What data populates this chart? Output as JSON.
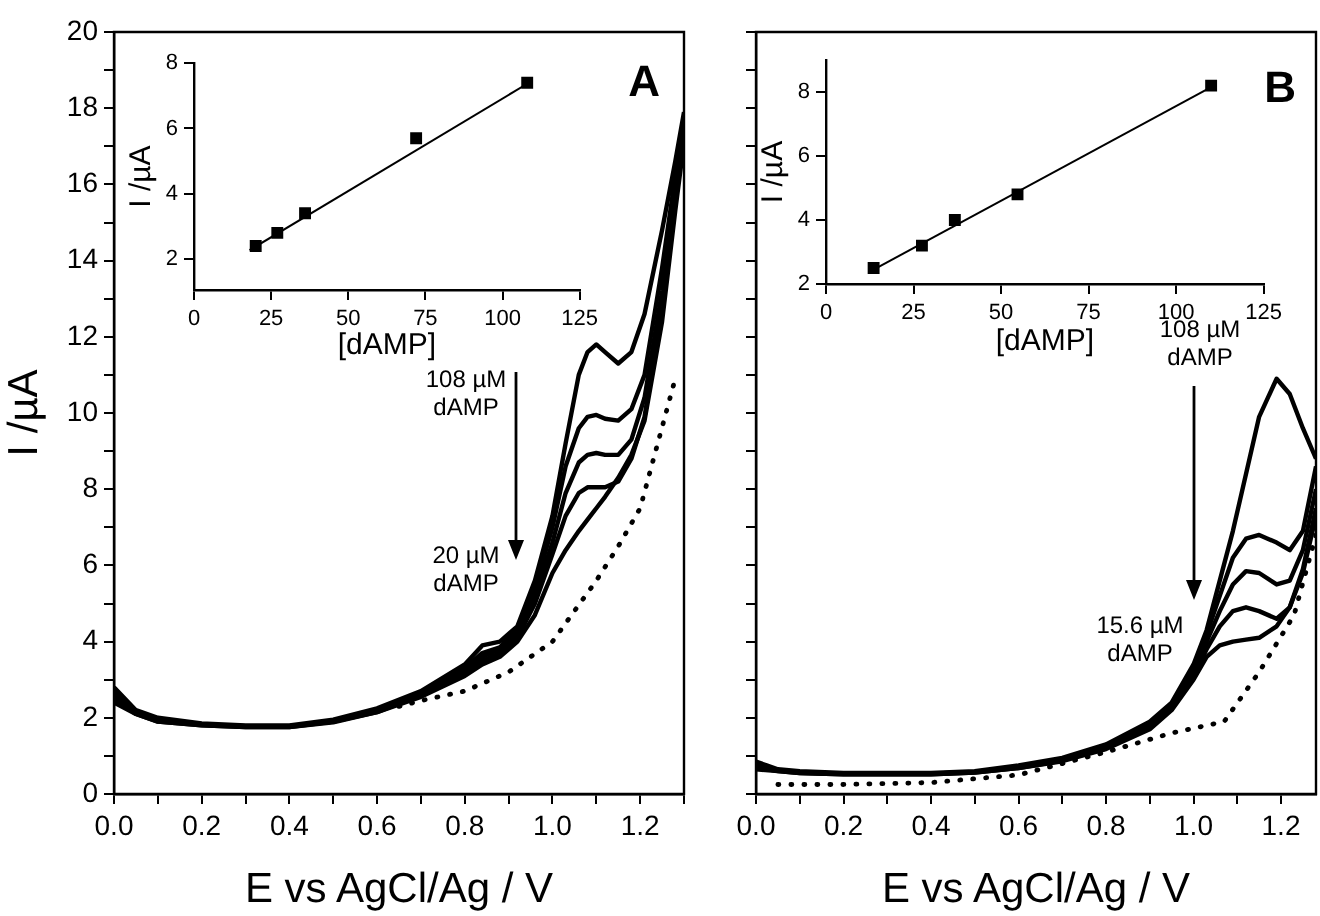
{
  "chart_data": [
    {
      "type": "line",
      "xlabel": "E vs AgCl/Ag / V",
      "ylabel": "I /µA",
      "xlim": [
        0,
        1.3
      ],
      "ylim": [
        0,
        20
      ],
      "xticks": [
        {
          "value": 0,
          "label": "0.0"
        },
        {
          "value": 0.1,
          "label": null
        },
        {
          "value": 0.2,
          "label": "0.2"
        },
        {
          "value": 0.3,
          "label": null
        },
        {
          "value": 0.4,
          "label": "0.4"
        },
        {
          "value": 0.5,
          "label": null
        },
        {
          "value": 0.6,
          "label": "0.6"
        },
        {
          "value": 0.7,
          "label": null
        },
        {
          "value": 0.8,
          "label": "0.8"
        },
        {
          "value": 0.9,
          "label": null
        },
        {
          "value": 1,
          "label": "1.0"
        },
        {
          "value": 1.1,
          "label": null
        },
        {
          "value": 1.2,
          "label": "1.2"
        },
        {
          "value": 1.3,
          "label": null
        }
      ],
      "yticks": [
        0,
        {
          "value": 1,
          "label": null
        },
        2,
        {
          "value": 3,
          "label": null
        },
        4,
        {
          "value": 5,
          "label": null
        },
        6,
        {
          "value": 7,
          "label": null
        },
        8,
        {
          "value": 9,
          "label": null
        },
        10,
        {
          "value": 11,
          "label": null
        },
        12,
        {
          "value": 13,
          "label": null
        },
        14,
        {
          "value": 15,
          "label": null
        },
        16,
        {
          "value": 17,
          "label": null
        },
        18,
        {
          "value": 19,
          "label": null
        },
        20
      ],
      "marker": "none",
      "legend": false,
      "grid": false,
      "annotations": [
        "A",
        "108 µM\ndAMP",
        "20 µM\ndAMP"
      ],
      "series": [
        {
          "color": "#000000",
          "x": [
            0,
            0.05,
            0.1,
            0.2,
            0.3,
            0.4,
            0.5,
            0.6,
            0.7,
            0.8,
            0.84,
            0.88,
            0.92,
            0.96,
            1.0,
            1.03,
            1.06,
            1.08,
            1.1,
            1.12,
            1.15,
            1.18,
            1.21,
            1.25,
            1.28,
            1.3
          ],
          "values": [
            2.8,
            2.2,
            2.0,
            1.85,
            1.8,
            1.8,
            1.95,
            2.25,
            2.7,
            3.4,
            3.9,
            4.0,
            4.4,
            5.6,
            7.3,
            9.2,
            11.0,
            11.6,
            11.8,
            11.6,
            11.3,
            11.6,
            12.6,
            14.8,
            16.6,
            17.9
          ]
        },
        {
          "color": "#000000",
          "x": [
            0,
            0.05,
            0.1,
            0.2,
            0.3,
            0.4,
            0.5,
            0.6,
            0.7,
            0.8,
            0.84,
            0.88,
            0.92,
            0.96,
            1.0,
            1.03,
            1.06,
            1.08,
            1.1,
            1.12,
            1.15,
            1.18,
            1.21,
            1.25,
            1.28,
            1.3
          ],
          "values": [
            2.7,
            2.15,
            1.95,
            1.82,
            1.78,
            1.78,
            1.92,
            2.2,
            2.65,
            3.3,
            3.7,
            3.85,
            4.3,
            5.4,
            7.0,
            8.6,
            9.6,
            9.9,
            9.95,
            9.85,
            9.8,
            10.1,
            11.0,
            13.8,
            16.2,
            17.7
          ]
        },
        {
          "color": "#000000",
          "x": [
            0,
            0.05,
            0.1,
            0.2,
            0.3,
            0.4,
            0.5,
            0.6,
            0.7,
            0.8,
            0.84,
            0.88,
            0.92,
            0.96,
            1.0,
            1.03,
            1.06,
            1.08,
            1.1,
            1.12,
            1.15,
            1.18,
            1.21,
            1.25,
            1.28,
            1.3
          ],
          "values": [
            2.6,
            2.15,
            1.95,
            1.82,
            1.78,
            1.78,
            1.9,
            2.2,
            2.6,
            3.25,
            3.6,
            3.8,
            4.2,
            5.2,
            6.6,
            7.9,
            8.7,
            8.9,
            8.95,
            8.9,
            8.9,
            9.3,
            10.4,
            13.2,
            15.9,
            17.5
          ]
        },
        {
          "color": "#000000",
          "x": [
            0,
            0.05,
            0.1,
            0.2,
            0.3,
            0.4,
            0.5,
            0.6,
            0.7,
            0.8,
            0.84,
            0.88,
            0.92,
            0.96,
            1.0,
            1.03,
            1.06,
            1.08,
            1.1,
            1.12,
            1.15,
            1.18,
            1.21,
            1.25,
            1.28,
            1.3
          ],
          "values": [
            2.5,
            2.1,
            1.9,
            1.8,
            1.76,
            1.76,
            1.9,
            2.15,
            2.6,
            3.2,
            3.5,
            3.7,
            4.1,
            5.0,
            6.3,
            7.3,
            7.9,
            8.05,
            8.05,
            8.05,
            8.2,
            8.8,
            9.9,
            12.8,
            15.6,
            17.3
          ]
        },
        {
          "color": "#000000",
          "x": [
            0,
            0.05,
            0.1,
            0.2,
            0.3,
            0.4,
            0.5,
            0.6,
            0.7,
            0.8,
            0.84,
            0.88,
            0.92,
            0.96,
            1.0,
            1.03,
            1.06,
            1.08,
            1.1,
            1.12,
            1.15,
            1.18,
            1.21,
            1.25,
            1.28,
            1.3
          ],
          "values": [
            2.4,
            2.1,
            1.9,
            1.8,
            1.76,
            1.76,
            1.88,
            2.15,
            2.55,
            3.1,
            3.4,
            3.6,
            4.0,
            4.7,
            5.8,
            6.4,
            6.9,
            7.2,
            7.5,
            7.8,
            8.3,
            8.9,
            9.8,
            12.4,
            15.3,
            17.1
          ]
        },
        {
          "color": "#000000",
          "line_style": "dotted",
          "x": [
            0.65,
            0.7,
            0.8,
            0.9,
            1.0,
            1.1,
            1.15,
            1.2,
            1.24,
            1.28
          ],
          "values": [
            2.3,
            2.45,
            2.7,
            3.2,
            4.0,
            5.6,
            6.5,
            7.5,
            9.2,
            10.9
          ]
        }
      ]
    },
    {
      "type": "scatter",
      "xlabel": "[dAMP]",
      "ylabel": "I /µA",
      "xlim": [
        0,
        125
      ],
      "ylim": [
        1.05,
        8
      ],
      "xticks": [
        0,
        25,
        50,
        75,
        100,
        125
      ],
      "yticks": [
        2,
        4,
        6,
        8
      ],
      "marker": "square",
      "legend": false,
      "grid": false,
      "series": [
        {
          "color": "#000000",
          "x": [
            20,
            27,
            36,
            72,
            108
          ],
          "values": [
            2.4,
            2.8,
            3.4,
            5.7,
            7.4
          ]
        },
        {
          "type": "line",
          "marker": "none",
          "color": "#000000",
          "x": [
            18,
            108
          ],
          "values": [
            2.27,
            7.37
          ]
        }
      ]
    },
    {
      "type": "line",
      "xlabel": "E vs AgCl/Ag / V",
      "xlim": [
        0,
        1.28
      ],
      "ylim": [
        0,
        20
      ],
      "tick_labels": "x",
      "xticks": [
        {
          "value": 0,
          "label": "0.0"
        },
        {
          "value": 0.1,
          "label": null
        },
        {
          "value": 0.2,
          "label": "0.2"
        },
        {
          "value": 0.3,
          "label": null
        },
        {
          "value": 0.4,
          "label": "0.4"
        },
        {
          "value": 0.5,
          "label": null
        },
        {
          "value": 0.6,
          "label": "0.6"
        },
        {
          "value": 0.7,
          "label": null
        },
        {
          "value": 0.8,
          "label": "0.8"
        },
        {
          "value": 0.9,
          "label": null
        },
        {
          "value": 1,
          "label": "1.0"
        },
        {
          "value": 1.1,
          "label": null
        },
        {
          "value": 1.2,
          "label": "1.2"
        }
      ],
      "yticks": [
        0,
        {
          "value": 1,
          "label": null
        },
        2,
        {
          "value": 3,
          "label": null
        },
        4,
        {
          "value": 5,
          "label": null
        },
        6,
        {
          "value": 7,
          "label": null
        },
        8,
        {
          "value": 9,
          "label": null
        },
        10,
        {
          "value": 11,
          "label": null
        },
        12,
        {
          "value": 13,
          "label": null
        },
        14,
        {
          "value": 15,
          "label": null
        },
        16,
        {
          "value": 17,
          "label": null
        },
        18,
        {
          "value": 19,
          "label": null
        },
        20
      ],
      "marker": "none",
      "legend": false,
      "grid": false,
      "annotations": [
        "B",
        "108 µM\ndAMP",
        "15.6 µM\ndAMP"
      ],
      "series": [
        {
          "color": "#000000",
          "x": [
            0,
            0.05,
            0.1,
            0.2,
            0.3,
            0.4,
            0.5,
            0.6,
            0.7,
            0.8,
            0.9,
            0.95,
            1.0,
            1.03,
            1.06,
            1.09,
            1.12,
            1.15,
            1.19,
            1.22,
            1.25,
            1.28
          ],
          "values": [
            0.85,
            0.65,
            0.6,
            0.55,
            0.55,
            0.55,
            0.6,
            0.75,
            0.95,
            1.3,
            1.9,
            2.4,
            3.4,
            4.3,
            5.6,
            6.9,
            8.4,
            9.9,
            10.9,
            10.5,
            9.6,
            8.8
          ]
        },
        {
          "color": "#000000",
          "x": [
            0,
            0.05,
            0.1,
            0.2,
            0.3,
            0.4,
            0.5,
            0.6,
            0.7,
            0.8,
            0.9,
            0.95,
            1.0,
            1.03,
            1.06,
            1.09,
            1.12,
            1.15,
            1.19,
            1.22,
            1.25,
            1.28
          ],
          "values": [
            0.8,
            0.62,
            0.57,
            0.53,
            0.53,
            0.53,
            0.58,
            0.72,
            0.92,
            1.25,
            1.85,
            2.35,
            3.3,
            4.2,
            5.2,
            6.2,
            6.7,
            6.8,
            6.6,
            6.4,
            6.9,
            8.6
          ]
        },
        {
          "color": "#000000",
          "x": [
            0,
            0.05,
            0.1,
            0.2,
            0.3,
            0.4,
            0.5,
            0.6,
            0.7,
            0.8,
            0.9,
            0.95,
            1.0,
            1.03,
            1.06,
            1.09,
            1.12,
            1.15,
            1.19,
            1.22,
            1.25,
            1.28
          ],
          "values": [
            0.75,
            0.62,
            0.57,
            0.53,
            0.53,
            0.53,
            0.58,
            0.7,
            0.9,
            1.22,
            1.8,
            2.3,
            3.2,
            4.0,
            4.8,
            5.5,
            5.85,
            5.8,
            5.5,
            5.6,
            6.4,
            8.0
          ]
        },
        {
          "color": "#000000",
          "x": [
            0,
            0.05,
            0.1,
            0.2,
            0.3,
            0.4,
            0.5,
            0.6,
            0.7,
            0.8,
            0.9,
            0.95,
            1.0,
            1.03,
            1.06,
            1.09,
            1.12,
            1.15,
            1.19,
            1.22,
            1.25,
            1.28
          ],
          "values": [
            0.7,
            0.6,
            0.55,
            0.52,
            0.52,
            0.52,
            0.56,
            0.68,
            0.88,
            1.2,
            1.75,
            2.25,
            3.1,
            3.8,
            4.4,
            4.8,
            4.9,
            4.8,
            4.6,
            4.9,
            5.9,
            7.5
          ]
        },
        {
          "color": "#000000",
          "x": [
            0,
            0.05,
            0.1,
            0.2,
            0.3,
            0.4,
            0.5,
            0.6,
            0.7,
            0.8,
            0.9,
            0.95,
            1.0,
            1.03,
            1.06,
            1.09,
            1.12,
            1.15,
            1.19,
            1.22,
            1.25,
            1.28
          ],
          "values": [
            0.65,
            0.6,
            0.55,
            0.52,
            0.52,
            0.52,
            0.56,
            0.68,
            0.86,
            1.18,
            1.7,
            2.2,
            3.0,
            3.6,
            3.9,
            4.0,
            4.05,
            4.1,
            4.4,
            4.9,
            5.8,
            7.3
          ]
        },
        {
          "color": "#000000",
          "line_style": "dotted",
          "x": [
            0.05,
            0.2,
            0.4,
            0.6,
            0.8,
            0.95,
            1.07,
            1.15,
            1.23,
            1.28
          ],
          "values": [
            0.25,
            0.25,
            0.3,
            0.5,
            1.1,
            1.6,
            1.9,
            3.2,
            4.7,
            6.8
          ]
        }
      ]
    },
    {
      "type": "scatter",
      "xlabel": "[dAMP]",
      "ylabel": "I /µA",
      "xlim": [
        0,
        125
      ],
      "ylim": [
        2,
        9
      ],
      "xticks": [
        0,
        25,
        50,
        75,
        100,
        125
      ],
      "yticks": [
        2,
        4,
        6,
        8
      ],
      "marker": "square",
      "legend": false,
      "grid": false,
      "series": [
        {
          "color": "#000000",
          "x": [
            13.6,
            27.4,
            36.8,
            54.7,
            110
          ],
          "values": [
            2.5,
            3.2,
            4.0,
            4.8,
            8.2
          ]
        },
        {
          "type": "line",
          "marker": "none",
          "color": "#000000",
          "x": [
            13.6,
            110
          ],
          "values": [
            2.45,
            8.15
          ]
        }
      ]
    }
  ]
}
